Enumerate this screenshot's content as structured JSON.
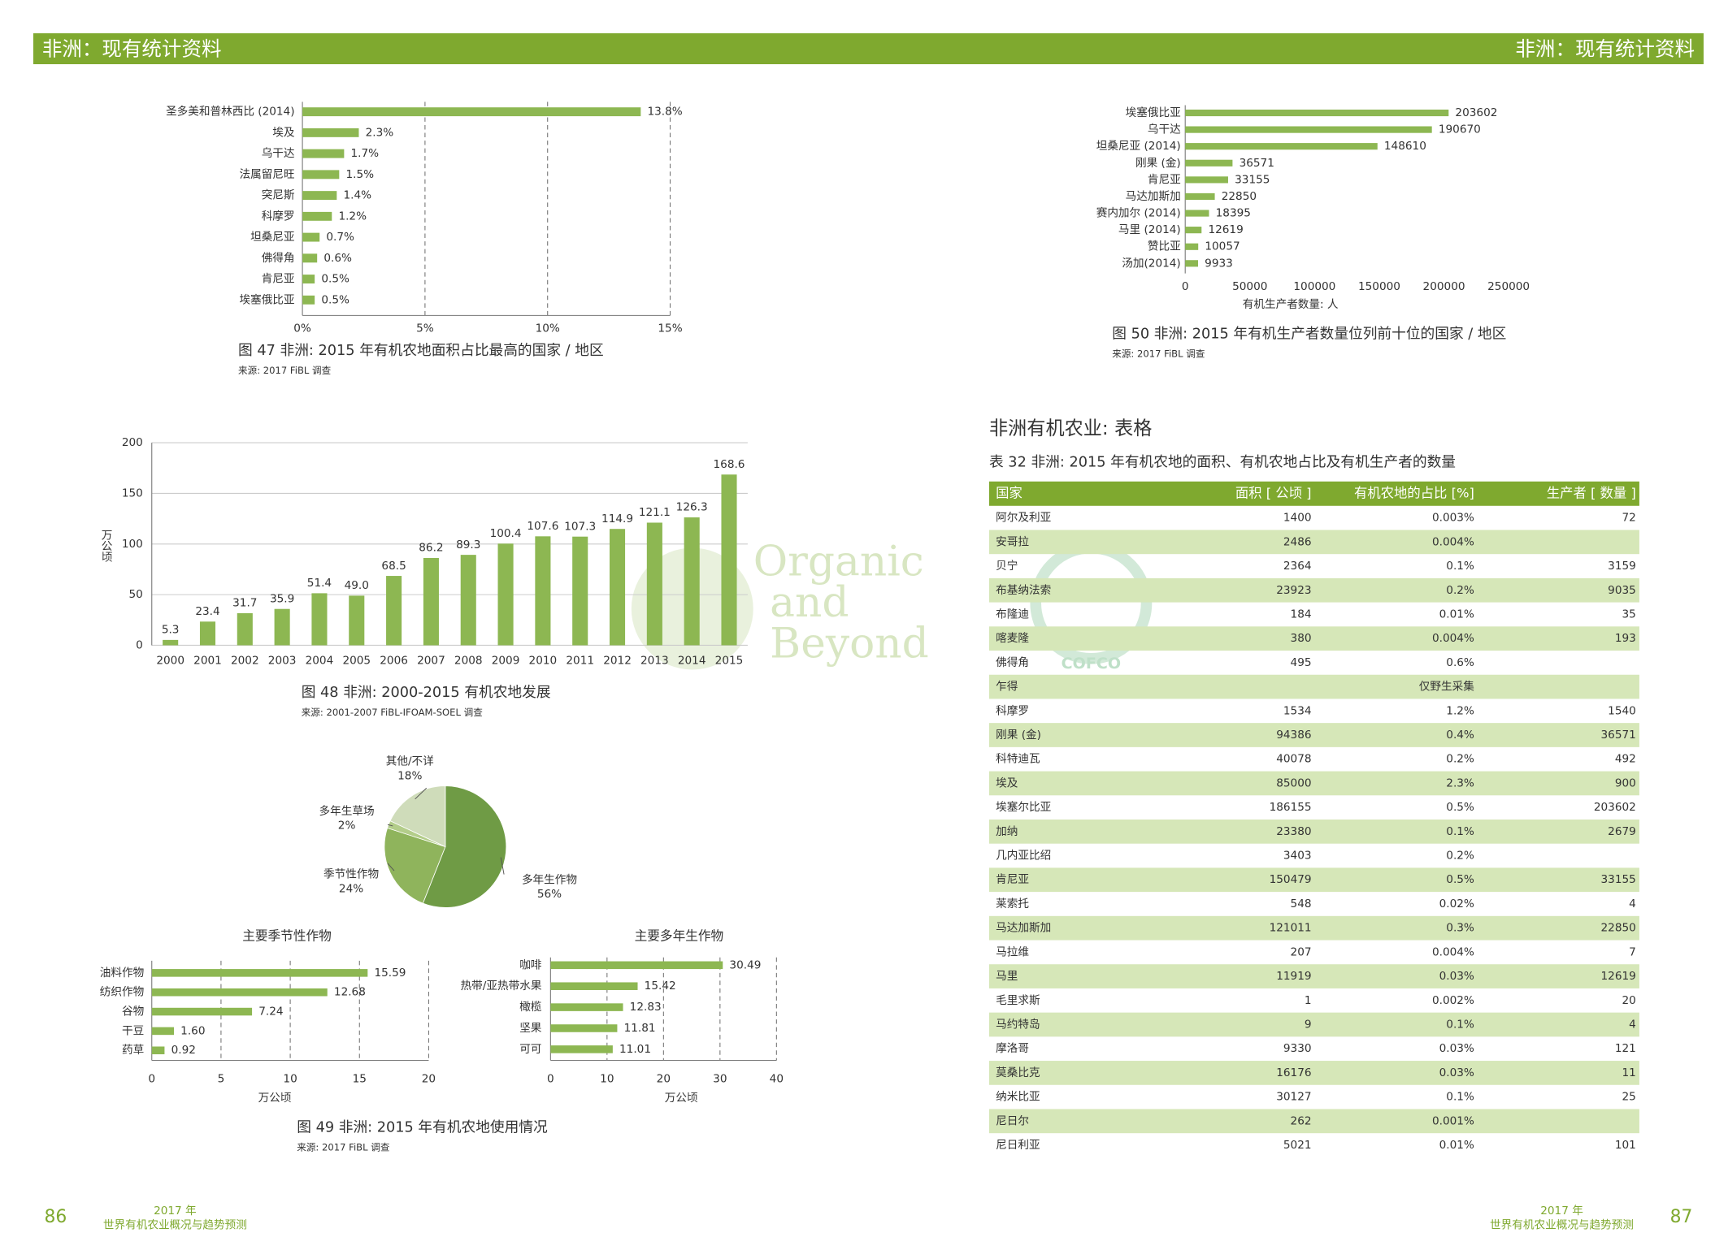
{
  "header": {
    "left": "非洲：现有统计资料",
    "right": "非洲：现有统计资料"
  },
  "chart_data": [
    {
      "type": "bar",
      "orientation": "horizontal",
      "categories": [
        "圣多美和普林西比 (2014)",
        "埃及",
        "乌干达",
        "法属留尼旺",
        "突尼斯",
        "科摩罗",
        "坦桑尼亚",
        "佛得角",
        "肯尼亚",
        "埃塞俄比亚"
      ],
      "values": [
        13.8,
        2.3,
        1.7,
        1.5,
        1.4,
        1.2,
        0.7,
        0.6,
        0.5,
        0.5
      ],
      "value_labels": [
        "13.8%",
        "2.3%",
        "1.7%",
        "1.5%",
        "1.4%",
        "1.2%",
        "0.7%",
        "0.6%",
        "0.5%",
        "0.5%"
      ],
      "xlim": [
        0,
        15
      ],
      "xticks": [
        {
          "value": 0,
          "label": "0%"
        },
        {
          "value": 5,
          "label": "5%"
        },
        {
          "value": 10,
          "label": "10%"
        },
        {
          "value": 15,
          "label": "15%"
        }
      ],
      "grid": true,
      "color": "#8db752",
      "caption": "图 47 非洲: 2015 年有机农地面积占比最高的国家 / 地区",
      "source": "来源: 2017 FiBL 调查"
    },
    {
      "type": "bar",
      "orientation": "horizontal",
      "categories": [
        "埃塞俄比亚",
        "乌干达",
        "坦桑尼亚 (2014)",
        "刚果 (金)",
        "肯尼亚",
        "马达加斯加",
        "赛内加尔 (2014)",
        "马里 (2014)",
        "赞比亚",
        "汤加(2014)"
      ],
      "values": [
        203602,
        190670,
        148610,
        36571,
        33155,
        22850,
        18395,
        12619,
        10057,
        9933
      ],
      "xlim": [
        0,
        250000
      ],
      "xticks": [
        0,
        50000,
        100000,
        150000,
        200000,
        250000
      ],
      "grid": false,
      "color": "#8db752",
      "xlabel": "有机生产者数量: 人",
      "caption": "图 50 非洲: 2015 年有机生产者数量位列前十位的国家 / 地区",
      "source": "来源: 2017 FiBL 调查"
    },
    {
      "type": "bar",
      "orientation": "vertical",
      "categories": [
        "2000",
        "2001",
        "2002",
        "2003",
        "2004",
        "2005",
        "2006",
        "2007",
        "2008",
        "2009",
        "2010",
        "2011",
        "2012",
        "2013",
        "2014",
        "2015"
      ],
      "values": [
        5.3,
        23.4,
        31.7,
        35.9,
        51.4,
        49.0,
        68.5,
        86.2,
        89.3,
        100.4,
        107.6,
        107.3,
        114.9,
        121.1,
        126.3,
        168.6
      ],
      "value_labels": [
        "5.3",
        "23.4",
        "31.7",
        "35.9",
        "51.4",
        "49.0",
        "68.5",
        "86.2",
        "89.3",
        "100.4",
        "107.6",
        "107.3",
        "114.9",
        "121.1",
        "126.3",
        "168.6"
      ],
      "ylim": [
        0,
        200
      ],
      "yticks": [
        0,
        50,
        100,
        150,
        200
      ],
      "grid": true,
      "color": "#8db752",
      "ylabel": "万公顷",
      "caption": "图 48 非洲: 2000-2015 有机农地发展",
      "source": "来源: 2001-2007 FiBL-IFOAM-SOEL 调查"
    },
    {
      "type": "pie",
      "categories": [
        "多年生作物",
        "季节性作物",
        "多年生草场",
        "其他/不详"
      ],
      "values": [
        56,
        24,
        2,
        18
      ],
      "value_labels": [
        "56%",
        "24%",
        "2%",
        "18%"
      ],
      "colors": [
        "#6f9b45",
        "#8fb45c",
        "#b3cd8a",
        "#cfdcba"
      ],
      "caption": "图 49 非洲: 2015 年有机农地使用情况",
      "source": "来源: 2017 FiBL 调查"
    },
    {
      "type": "bar",
      "orientation": "horizontal",
      "title": "主要季节性作物",
      "categories": [
        "油料作物",
        "纺织作物",
        "谷物",
        "干豆",
        "药草"
      ],
      "values": [
        15.59,
        12.68,
        7.24,
        1.6,
        0.92
      ],
      "value_labels": [
        "15.59",
        "12.68",
        "7.24",
        "1.60",
        "0.92"
      ],
      "xlim": [
        0,
        20
      ],
      "xticks": [
        0,
        5,
        10,
        15,
        20
      ],
      "grid": true,
      "color": "#8db752",
      "xlabel": "万公顷"
    },
    {
      "type": "bar",
      "orientation": "horizontal",
      "title": "主要多年生作物",
      "categories": [
        "咖啡",
        "热带/亚热带水果",
        "橄榄",
        "坚果",
        "可可"
      ],
      "values": [
        30.49,
        15.42,
        12.83,
        11.81,
        11.01
      ],
      "xlim": [
        0,
        40
      ],
      "xticks": [
        0,
        10,
        20,
        30,
        40
      ],
      "grid": true,
      "color": "#8db752",
      "xlabel": "万公顷"
    }
  ],
  "table": {
    "title": "非洲有机农业: 表格",
    "subtitle": "表 32 非洲: 2015 年有机农地的面积、有机农地占比及有机生产者的数量",
    "columns": [
      "国家",
      "面积 [ 公顷 ]",
      "有机农地的占比 [%]",
      "生产者 [ 数量 ]"
    ],
    "rows": [
      [
        "阿尔及利亚",
        1400,
        "0.003%",
        72
      ],
      [
        "安哥拉",
        2486,
        "0.004%",
        null
      ],
      [
        "贝宁",
        2364,
        "0.1%",
        3159
      ],
      [
        "布基纳法索",
        23923,
        "0.2%",
        9035
      ],
      [
        "布隆迪",
        184,
        "0.01%",
        35
      ],
      [
        "喀麦隆",
        380,
        "0.004%",
        193
      ],
      [
        "佛得角",
        495,
        "0.6%",
        null
      ],
      [
        "乍得",
        null,
        "仅野生采集",
        null
      ],
      [
        "科摩罗",
        1534,
        "1.2%",
        1540
      ],
      [
        "刚果 (金)",
        94386,
        "0.4%",
        36571
      ],
      [
        "科特迪瓦",
        40078,
        "0.2%",
        492
      ],
      [
        "埃及",
        85000,
        "2.3%",
        900
      ],
      [
        "埃塞尔比亚",
        186155,
        "0.5%",
        203602
      ],
      [
        "加纳",
        23380,
        "0.1%",
        2679
      ],
      [
        "几内亚比绍",
        3403,
        "0.2%",
        null
      ],
      [
        "肯尼亚",
        150479,
        "0.5%",
        33155
      ],
      [
        "莱索托",
        548,
        "0.02%",
        4
      ],
      [
        "马达加斯加",
        121011,
        "0.3%",
        22850
      ],
      [
        "马拉维",
        207,
        "0.004%",
        7
      ],
      [
        "马里",
        11919,
        "0.03%",
        12619
      ],
      [
        "毛里求斯",
        1,
        "0.002%",
        20
      ],
      [
        "马约特岛",
        9,
        "0.1%",
        4
      ],
      [
        "摩洛哥",
        9330,
        "0.03%",
        121
      ],
      [
        "莫桑比克",
        16176,
        "0.03%",
        11
      ],
      [
        "纳米比亚",
        30127,
        "0.1%",
        25
      ],
      [
        "尼日尔",
        262,
        "0.001%",
        null
      ],
      [
        "尼日利亚",
        5021,
        "0.01%",
        101
      ]
    ]
  },
  "watermark": {
    "lines": [
      "Organic",
      "and",
      "Beyond"
    ],
    "logo": "COFCO"
  },
  "footer": {
    "left_page": "86",
    "right_page": "87",
    "year": "2017 年",
    "book": "世界有机农业概况与趋势预测"
  }
}
